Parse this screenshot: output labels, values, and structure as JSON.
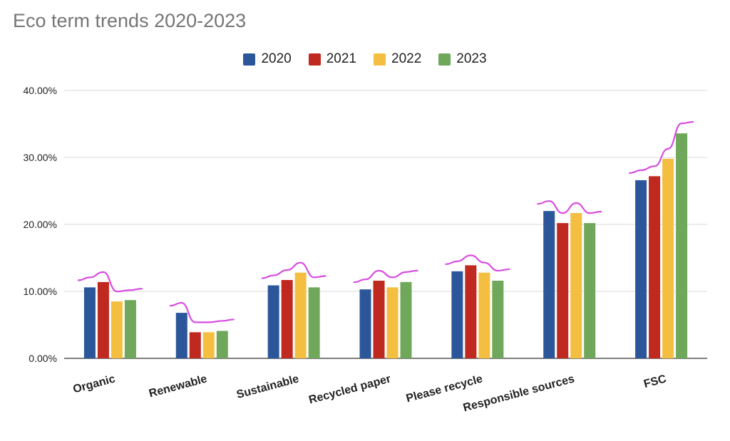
{
  "chart_data": {
    "type": "bar",
    "title": "Eco term trends 2020-2023",
    "categories": [
      "Organic",
      "Renewable",
      "Sustainable",
      "Recycled paper",
      "Please recycle",
      "Responsible sources",
      "FSC"
    ],
    "series": [
      {
        "name": "2020",
        "color": "#2b579a",
        "values": [
          10.6,
          6.8,
          10.9,
          10.3,
          13.0,
          22.0,
          26.6
        ]
      },
      {
        "name": "2021",
        "color": "#c0291f",
        "values": [
          11.4,
          3.9,
          11.7,
          11.6,
          13.9,
          20.2,
          27.2
        ]
      },
      {
        "name": "2022",
        "color": "#f4be41",
        "values": [
          8.5,
          3.9,
          12.8,
          10.6,
          12.8,
          21.7,
          29.8
        ]
      },
      {
        "name": "2023",
        "color": "#6fa85a",
        "values": [
          8.7,
          4.1,
          10.6,
          11.4,
          11.6,
          20.2,
          33.6
        ]
      }
    ],
    "y_ticks": [
      "0.00%",
      "10.00%",
      "20.00%",
      "30.00%",
      "40.00%"
    ],
    "ylim": [
      0,
      40
    ],
    "grid": true,
    "legend_position": "top-center",
    "annotation_color": "#d74ce0"
  }
}
